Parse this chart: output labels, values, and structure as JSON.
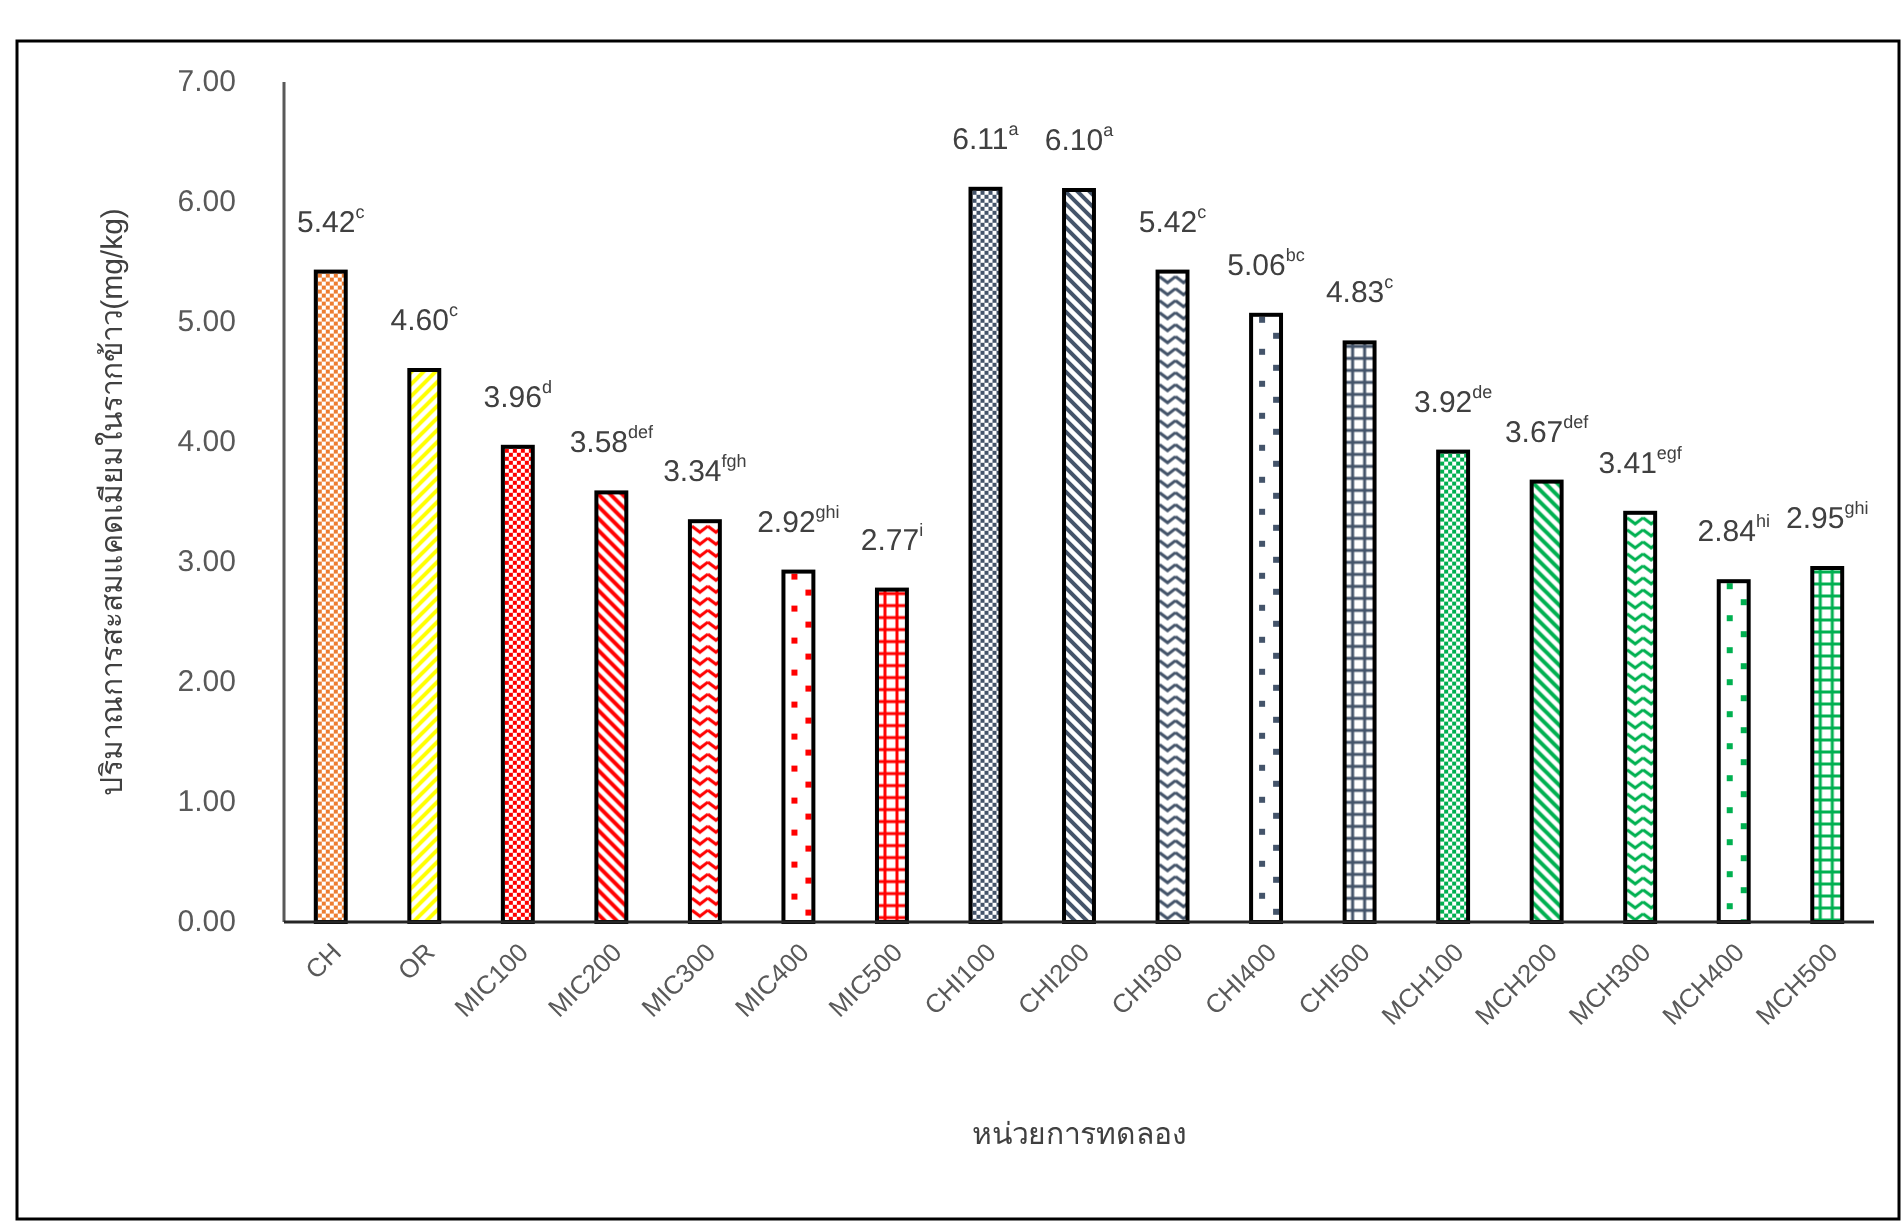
{
  "chart_data": {
    "type": "bar",
    "xlabel": "หน่วยการทดลอง",
    "ylabel": "ปริมาณการสะสมแคดเมียมในรากข้าว(mg/kg)",
    "categories": [
      "CH",
      "OR",
      "MIC100",
      "MIC200",
      "MIC300",
      "MIC400",
      "MIC500",
      "CHI100",
      "CHI200",
      "CHI300",
      "CHI400",
      "CHI500",
      "MCH100",
      "MCH200",
      "MCH300",
      "MCH400",
      "MCH500"
    ],
    "values": [
      5.42,
      4.6,
      3.96,
      3.58,
      3.34,
      2.92,
      2.77,
      6.11,
      6.1,
      5.42,
      5.06,
      4.83,
      3.92,
      3.67,
      3.41,
      2.84,
      2.95
    ],
    "colors": [
      "#ed7d31",
      "#ffff00",
      "#ff0000",
      "#ff0000",
      "#ff0000",
      "#ff0000",
      "#ff0000",
      "#44546a",
      "#44546a",
      "#44546a",
      "#44546a",
      "#44546a",
      "#00b050",
      "#00b050",
      "#00b050",
      "#00b050",
      "#00b050"
    ],
    "value_labels": [
      "5.42$^{c}$",
      "4.60$^{c}$",
      "3.96$^{d}$",
      "3.58$^{def}$",
      "3.34$^{fgh}$",
      "2.92$^{ghi}$",
      "2.77$^{i}$",
      "6.11$^{a}$",
      "6.10$^{a}$",
      "5.42$^{c}$",
      "5.06$^{bc}$",
      "4.83$^{c}$",
      "3.92$^{de}$",
      "3.67$^{def}$",
      "3.41$^{egf}$",
      "2.84$^{hi}$",
      "2.95$^{ghi}$"
    ],
    "ylim": [
      0,
      7
    ],
    "yticks": [
      {
        "value": 0,
        "label": "0.00"
      },
      {
        "value": 1,
        "label": "1.00"
      },
      {
        "value": 2,
        "label": "2.00"
      },
      {
        "value": 3,
        "label": "3.00"
      },
      {
        "value": 4,
        "label": "4.00"
      },
      {
        "value": 5,
        "label": "5.00"
      },
      {
        "value": 6,
        "label": "6.00"
      },
      {
        "value": 7,
        "label": "7.00"
      }
    ]
  }
}
